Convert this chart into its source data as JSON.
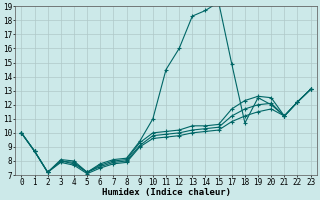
{
  "title": "",
  "xlabel": "Humidex (Indice chaleur)",
  "bg_color": "#cce9e9",
  "line_color": "#006666",
  "ylim": [
    7,
    19
  ],
  "xlim": [
    0,
    23
  ],
  "yticks": [
    7,
    8,
    9,
    10,
    11,
    12,
    13,
    14,
    15,
    16,
    17,
    18,
    19
  ],
  "xticks": [
    0,
    1,
    2,
    3,
    4,
    5,
    6,
    7,
    8,
    9,
    10,
    11,
    12,
    13,
    14,
    15,
    17,
    18,
    19,
    20,
    21,
    22,
    23
  ],
  "lines": [
    {
      "x": [
        0,
        1,
        2,
        3,
        4,
        5,
        6,
        7,
        8,
        9,
        10,
        11,
        12,
        13,
        14,
        15,
        17,
        18,
        19,
        20,
        21,
        22,
        23
      ],
      "y": [
        10.0,
        8.7,
        7.2,
        8.1,
        8.0,
        7.2,
        7.8,
        8.1,
        8.2,
        9.4,
        11.0,
        14.5,
        16.0,
        18.3,
        18.7,
        19.3,
        14.9,
        10.7,
        12.5,
        12.0,
        11.2,
        12.2,
        13.1
      ]
    },
    {
      "x": [
        0,
        1,
        2,
        3,
        4,
        5,
        6,
        7,
        8,
        9,
        10,
        11,
        12,
        13,
        14,
        15,
        17,
        18,
        19,
        20,
        21,
        22,
        23
      ],
      "y": [
        10.0,
        8.7,
        7.2,
        8.0,
        7.9,
        7.2,
        7.7,
        8.0,
        8.1,
        9.3,
        10.0,
        10.1,
        10.2,
        10.5,
        10.5,
        10.6,
        11.7,
        12.3,
        12.6,
        12.5,
        11.2,
        12.2,
        13.1
      ]
    },
    {
      "x": [
        0,
        1,
        2,
        3,
        4,
        5,
        6,
        7,
        8,
        9,
        10,
        11,
        12,
        13,
        14,
        15,
        17,
        18,
        19,
        20,
        21,
        22,
        23
      ],
      "y": [
        10.0,
        8.7,
        7.2,
        8.0,
        7.8,
        7.2,
        7.6,
        7.9,
        8.0,
        9.1,
        9.8,
        9.9,
        10.0,
        10.2,
        10.3,
        10.4,
        11.2,
        11.7,
        12.0,
        12.1,
        11.2,
        12.2,
        13.1
      ]
    },
    {
      "x": [
        0,
        1,
        2,
        3,
        4,
        5,
        6,
        7,
        8,
        9,
        10,
        11,
        12,
        13,
        14,
        15,
        17,
        18,
        19,
        20,
        21,
        22,
        23
      ],
      "y": [
        10.0,
        8.7,
        7.2,
        7.9,
        7.7,
        7.1,
        7.5,
        7.8,
        7.9,
        9.0,
        9.6,
        9.7,
        9.8,
        10.0,
        10.1,
        10.2,
        10.8,
        11.2,
        11.5,
        11.7,
        11.2,
        12.2,
        13.1
      ]
    }
  ],
  "grid_color": "#b0c8c8",
  "marker": "+",
  "markersize": 3.5,
  "linewidth": 0.8,
  "tick_fontsize": 5.5,
  "xlabel_fontsize": 6.5
}
